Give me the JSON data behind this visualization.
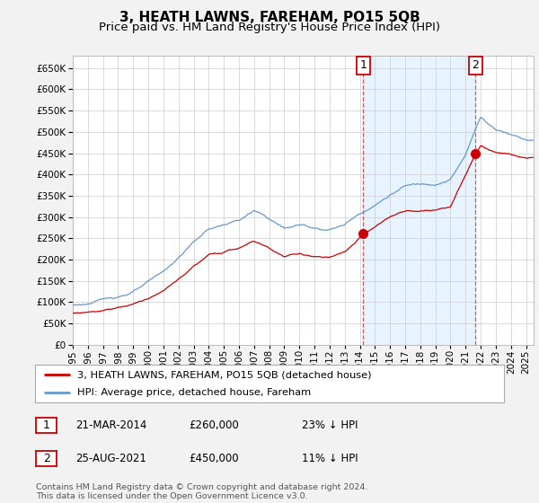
{
  "title": "3, HEATH LAWNS, FAREHAM, PO15 5QB",
  "subtitle": "Price paid vs. HM Land Registry's House Price Index (HPI)",
  "ylim": [
    0,
    680000
  ],
  "yticks": [
    0,
    50000,
    100000,
    150000,
    200000,
    250000,
    300000,
    350000,
    400000,
    450000,
    500000,
    550000,
    600000,
    650000
  ],
  "xlim_start": 1995.0,
  "xlim_end": 2025.5,
  "bg_color": "#f2f2f2",
  "plot_bg_color": "#ffffff",
  "grid_color": "#cccccc",
  "hpi_color": "#6699cc",
  "price_color": "#cc0000",
  "shade_color": "#ddeeff",
  "sale1_date": 2014.22,
  "sale1_price": 260000,
  "sale2_date": 2021.65,
  "sale2_price": 450000,
  "legend_label_price": "3, HEATH LAWNS, FAREHAM, PO15 5QB (detached house)",
  "legend_label_hpi": "HPI: Average price, detached house, Fareham",
  "footer": "Contains HM Land Registry data © Crown copyright and database right 2024.\nThis data is licensed under the Open Government Licence v3.0.",
  "title_fontsize": 11,
  "subtitle_fontsize": 9.5,
  "tick_fontsize": 7.5,
  "hpi_anchors_years": [
    1995,
    1996,
    1997,
    1998,
    1999,
    2000,
    2001,
    2002,
    2003,
    2004,
    2005,
    2006,
    2007,
    2008,
    2009,
    2010,
    2011,
    2012,
    2013,
    2014,
    2015,
    2016,
    2017,
    2018,
    2019,
    2020,
    2021,
    2022,
    2023,
    2024,
    2025
  ],
  "hpi_anchors_vals": [
    92000,
    96000,
    103000,
    112000,
    124000,
    143000,
    165000,
    198000,
    235000,
    265000,
    275000,
    285000,
    305000,
    285000,
    262000,
    270000,
    263000,
    260000,
    272000,
    300000,
    320000,
    345000,
    365000,
    368000,
    372000,
    385000,
    440000,
    530000,
    500000,
    490000,
    480000
  ],
  "price_anchors_years": [
    1995,
    1996,
    1997,
    1998,
    1999,
    2000,
    2001,
    2002,
    2003,
    2004,
    2005,
    2006,
    2007,
    2008,
    2009,
    2010,
    2011,
    2012,
    2013,
    2014.22,
    2015,
    2016,
    2017,
    2018,
    2019,
    2020,
    2021.65,
    2022,
    2023,
    2024,
    2025
  ],
  "price_anchors_vals": [
    73000,
    77000,
    83000,
    91000,
    100000,
    116000,
    134000,
    160000,
    191000,
    215000,
    223000,
    232000,
    248000,
    232000,
    213000,
    219000,
    214000,
    211000,
    221000,
    260000,
    278000,
    300000,
    315000,
    317000,
    320000,
    330000,
    450000,
    470000,
    455000,
    448000,
    440000
  ]
}
